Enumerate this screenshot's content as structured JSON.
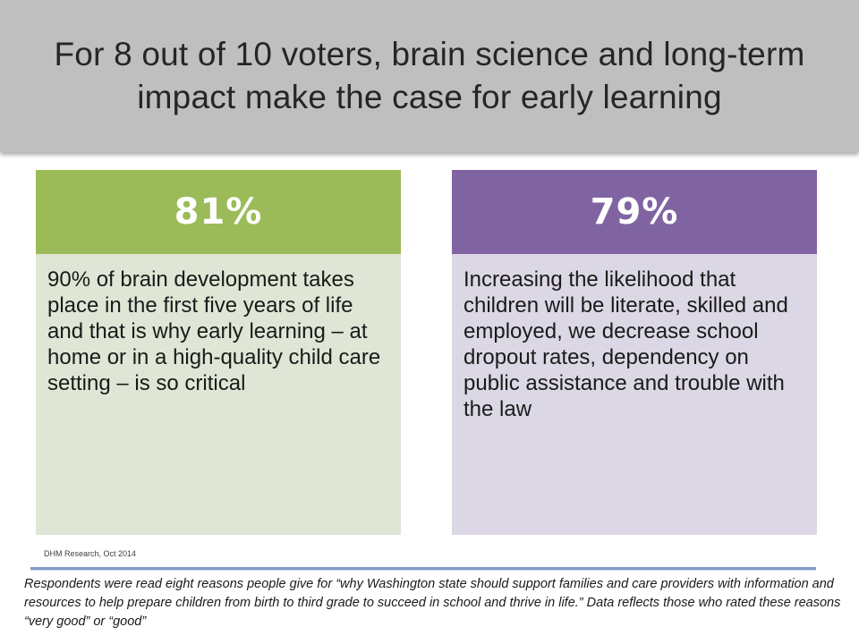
{
  "slide": {
    "title": "For 8 out of 10 voters, brain science and long-term impact make the case for early learning"
  },
  "cards": [
    {
      "percent": "81%",
      "text": "90% of brain development takes place in the first five years of life and that is why early learning – at home or in a high-quality child care setting – is so critical",
      "header_color": "#9bbb59",
      "body_color": "#dfe6d5"
    },
    {
      "percent": "79%",
      "text": "Increasing the likelihood that children will be literate, skilled and employed,  we decrease school dropout rates, dependency on public assistance and trouble with the law",
      "header_color": "#8064a2",
      "body_color": "#dcd7e4"
    }
  ],
  "source": "DHM Research, Oct 2014",
  "footnote": "Respondents were read eight reasons people give for “why Washington state should support families and care providers with information and resources to help prepare children from birth to third grade to succeed in school and thrive in life.” Data reflects those who rated these reasons “very good” or “good”"
}
